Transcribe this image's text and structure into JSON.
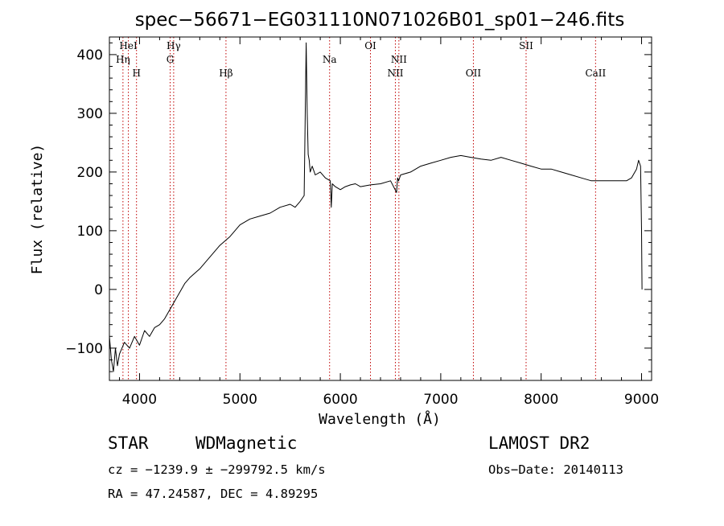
{
  "chart_data": {
    "type": "line",
    "title": "spec−56671−EG031110N071026B01_sp01−246.fits",
    "xlabel": "Wavelength (Å)",
    "ylabel": "Flux (relative)",
    "xlim": [
      3700,
      9100
    ],
    "ylim": [
      -155,
      430
    ],
    "xticks": [
      4000,
      5000,
      6000,
      7000,
      8000,
      9000
    ],
    "yticks": [
      -100,
      0,
      100,
      200,
      300,
      400
    ],
    "ytick_labels": [
      "−100",
      "0",
      "100",
      "200",
      "300",
      "400"
    ],
    "grid": false,
    "legend": "none",
    "series": [
      {
        "x": [
          3700,
          3720,
          3740,
          3760,
          3780,
          3800,
          3850,
          3900,
          3950,
          4000,
          4050,
          4100,
          4150,
          4200,
          4250,
          4300,
          4350,
          4400,
          4450,
          4500,
          4600,
          4700,
          4800,
          4900,
          5000,
          5100,
          5200,
          5300,
          5400,
          5500,
          5550,
          5600,
          5640,
          5660,
          5670,
          5680,
          5690,
          5700,
          5720,
          5750,
          5800,
          5850,
          5900,
          5910,
          5920,
          5950,
          6000,
          6050,
          6100,
          6150,
          6200,
          6300,
          6400,
          6500,
          6560,
          6570,
          6580,
          6600,
          6700,
          6800,
          6900,
          7000,
          7100,
          7200,
          7300,
          7400,
          7500,
          7600,
          7700,
          7800,
          7900,
          8000,
          8100,
          8200,
          8300,
          8400,
          8500,
          8600,
          8700,
          8800,
          8850,
          8900,
          8950,
          8970,
          8990,
          9000,
          9005
        ],
        "y": [
          -80,
          -120,
          -140,
          -100,
          -130,
          -110,
          -90,
          -100,
          -80,
          -95,
          -70,
          -80,
          -65,
          -60,
          -50,
          -35,
          -20,
          -5,
          10,
          20,
          35,
          55,
          75,
          90,
          110,
          120,
          125,
          130,
          140,
          145,
          140,
          150,
          160,
          420,
          300,
          230,
          220,
          200,
          210,
          195,
          200,
          190,
          185,
          140,
          180,
          175,
          170,
          175,
          178,
          180,
          175,
          178,
          180,
          185,
          165,
          190,
          185,
          195,
          200,
          210,
          215,
          220,
          225,
          228,
          225,
          222,
          220,
          225,
          220,
          215,
          210,
          205,
          205,
          200,
          195,
          190,
          185,
          185,
          185,
          185,
          185,
          190,
          205,
          220,
          210,
          100,
          0
        ]
      }
    ],
    "annotations": [
      {
        "label": "HeI",
        "x": 3889,
        "row": 1
      },
      {
        "label": "Hη",
        "x": 3835,
        "row": 2
      },
      {
        "label": "H",
        "x": 3970,
        "row": 3
      },
      {
        "label": "Hγ",
        "x": 4340,
        "row": 1
      },
      {
        "label": "G",
        "x": 4305,
        "row": 2
      },
      {
        "label": "Hβ",
        "x": 4861,
        "row": 3
      },
      {
        "label": "Na",
        "x": 5893,
        "row": 2
      },
      {
        "label": "OI",
        "x": 6300,
        "row": 1
      },
      {
        "label": "NII",
        "x": 6583,
        "row": 2
      },
      {
        "label": "NII",
        "x": 6548,
        "row": 3
      },
      {
        "label": "OII",
        "x": 7325,
        "row": 3
      },
      {
        "label": "SII",
        "x": 7850,
        "row": 1
      },
      {
        "label": "CaII",
        "x": 8542,
        "row": 3
      }
    ],
    "line_markers": [
      3835,
      3889,
      3970,
      4305,
      4340,
      4861,
      5893,
      6300,
      6548,
      6583,
      7325,
      7850,
      8542
    ]
  },
  "info": {
    "object_class": "STAR",
    "subclass": "WDMagnetic",
    "survey": "LAMOST DR2",
    "cz": "cz = −1239.9 ± −299792.5 km/s",
    "obs_date": "Obs−Date: 20140113",
    "radec": "RA =  47.24587, DEC =   4.89295"
  },
  "colors": {
    "spectrum": "#000000",
    "line_marker": "#c00000",
    "axes": "#000000",
    "background": "#ffffff"
  }
}
